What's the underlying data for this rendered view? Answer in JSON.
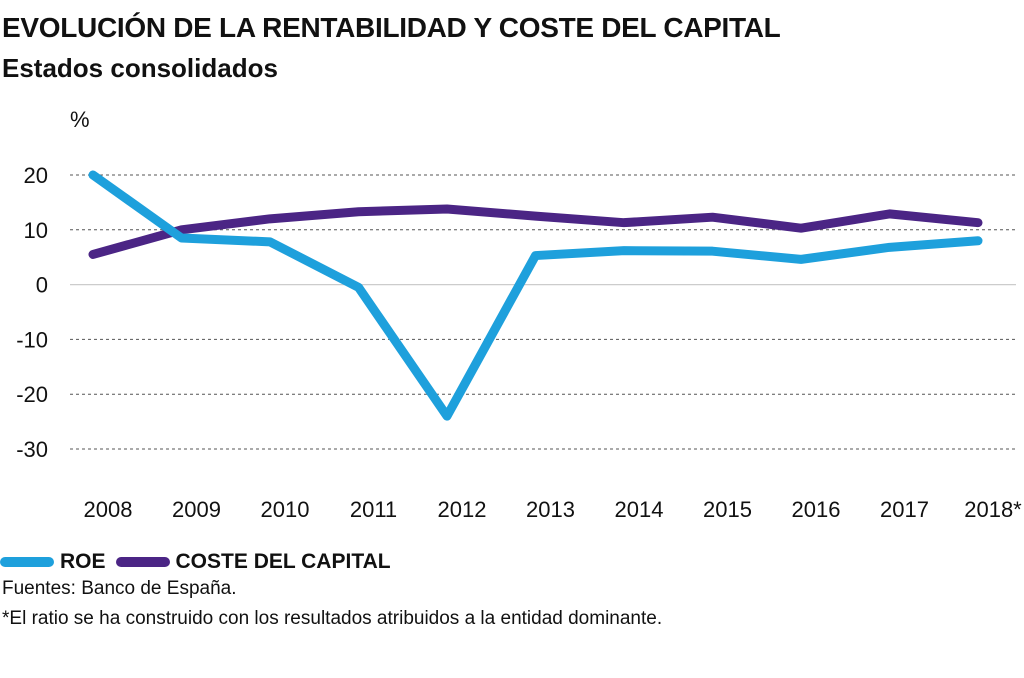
{
  "title": "EVOLUCIÓN DE LA RENTABILIDAD Y COSTE DEL CAPITAL",
  "subtitle": "Estados consolidados",
  "chart_data": {
    "type": "line",
    "ylabel": "%",
    "ylim": [
      -30,
      20
    ],
    "yticks": [
      20,
      10,
      0,
      -10,
      -20,
      -30
    ],
    "categories": [
      "2008",
      "2009",
      "2010",
      "2011",
      "2012",
      "2013",
      "2014",
      "2015",
      "2016",
      "2017",
      "2018*"
    ],
    "grid": "horizontal dashed",
    "series": [
      {
        "name": "ROE",
        "color": "#1EA0DC",
        "values": [
          20,
          8.5,
          7.8,
          -0.5,
          -24,
          5.3,
          6.2,
          6.1,
          4.6,
          6.8,
          8
        ]
      },
      {
        "name": "COSTE DEL CAPITAL",
        "color": "#4B2585",
        "values": [
          5.5,
          10,
          12,
          13.3,
          13.8,
          12.5,
          11.3,
          12.3,
          10.3,
          12.9,
          11.3
        ]
      }
    ]
  },
  "footer": {
    "source": "Fuentes: Banco de España.",
    "note": "*El ratio se ha construido con los resultados atribuidos a la entidad dominante."
  }
}
